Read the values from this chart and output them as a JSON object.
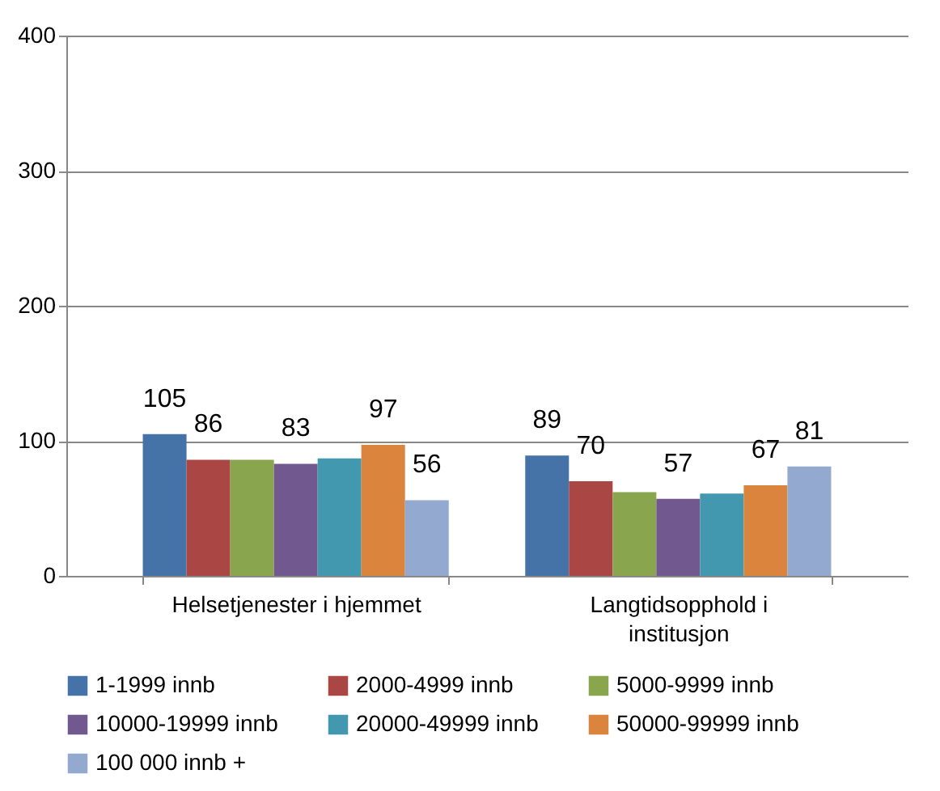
{
  "chart_data": {
    "type": "bar",
    "categories": [
      "Helsetjenester i hjemmet",
      "Langtidsopphold i institusjon"
    ],
    "series": [
      {
        "name": "1-1999 innb",
        "color": "#4572a7",
        "values": [
          105,
          89
        ],
        "value_labels": [
          "105",
          "89"
        ]
      },
      {
        "name": "2000-4999 innb",
        "color": "#aa4643",
        "values": [
          86,
          70
        ],
        "value_labels": [
          "86",
          "70"
        ]
      },
      {
        "name": "5000-9999 innb",
        "color": "#89a54e",
        "values": [
          86,
          62
        ],
        "value_labels": [
          null,
          null
        ]
      },
      {
        "name": "10000-19999 innb",
        "color": "#71588f",
        "values": [
          83,
          57
        ],
        "value_labels": [
          "83",
          "57"
        ]
      },
      {
        "name": "20000-49999 innb",
        "color": "#4198af",
        "values": [
          87,
          61
        ],
        "value_labels": [
          null,
          null
        ]
      },
      {
        "name": "50000-99999 innb",
        "color": "#db843d",
        "values": [
          97,
          67
        ],
        "value_labels": [
          "97",
          "67"
        ]
      },
      {
        "name": "100 000 innb +",
        "color": "#93a9cf",
        "values": [
          56,
          81
        ],
        "value_labels": [
          "56",
          "81"
        ]
      }
    ],
    "ylim": [
      0,
      400
    ],
    "yticks": [
      0,
      100,
      200,
      300,
      400
    ],
    "grid": "y",
    "legend": "bottom"
  }
}
